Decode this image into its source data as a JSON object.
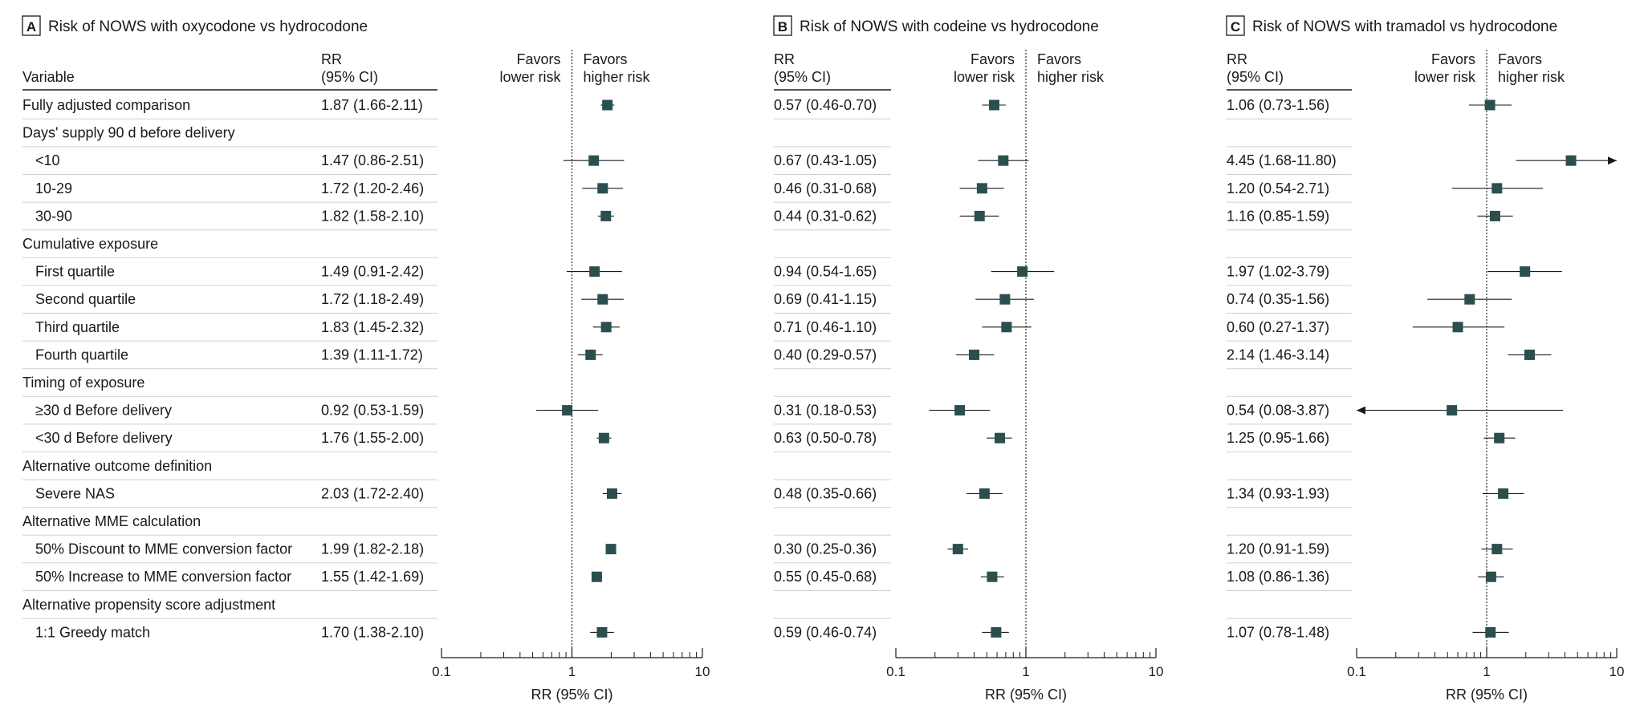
{
  "figure": {
    "variable_header": "Variable",
    "rr_header_line1": "RR",
    "rr_header_line2": "(95% CI)",
    "favors_left_line1": "Favors",
    "favors_left_line2": "lower risk",
    "favors_right_line1": "Favors",
    "favors_right_line2": "higher risk",
    "axis_label": "RR (95% CI)",
    "tick_labels": [
      "0.1",
      "1",
      "10"
    ],
    "colors": {
      "marker": "#2b4f4f",
      "text": "#1a1a1a",
      "rule": "#cfcfcf"
    }
  },
  "chart_data": {
    "type": "forest",
    "xscale": "log",
    "xlim": [
      0.1,
      10
    ],
    "reference_line": 1,
    "rows": [
      {
        "label": "Fully adjusted comparison",
        "kind": "item",
        "indent": false
      },
      {
        "label": "Days' supply 90 d before delivery",
        "kind": "heading"
      },
      {
        "label": "<10",
        "kind": "item",
        "indent": true
      },
      {
        "label": "10-29",
        "kind": "item",
        "indent": true
      },
      {
        "label": "30-90",
        "kind": "item",
        "indent": true
      },
      {
        "label": "Cumulative exposure",
        "kind": "heading"
      },
      {
        "label": "First quartile",
        "kind": "item",
        "indent": true
      },
      {
        "label": "Second quartile",
        "kind": "item",
        "indent": true
      },
      {
        "label": "Third quartile",
        "kind": "item",
        "indent": true
      },
      {
        "label": "Fourth quartile",
        "kind": "item",
        "indent": true
      },
      {
        "label": "Timing of exposure",
        "kind": "heading"
      },
      {
        "label": "≥30 d Before delivery",
        "kind": "item",
        "indent": true
      },
      {
        "label": "<30 d Before delivery",
        "kind": "item",
        "indent": true
      },
      {
        "label": "Alternative outcome definition",
        "kind": "heading"
      },
      {
        "label": "Severe NAS",
        "kind": "item",
        "indent": true
      },
      {
        "label": "Alternative MME calculation",
        "kind": "heading"
      },
      {
        "label": "50% Discount to MME conversion factor",
        "kind": "item",
        "indent": true
      },
      {
        "label": "50% Increase to MME conversion factor",
        "kind": "item",
        "indent": true
      },
      {
        "label": "Alternative propensity score adjustment",
        "kind": "heading"
      },
      {
        "label": "1:1 Greedy match",
        "kind": "item",
        "indent": true
      }
    ],
    "panels": [
      {
        "badge": "A",
        "title": "Risk of NOWS with oxycodone vs hydrocodone",
        "estimates": [
          {
            "row": 0,
            "text": "1.87 (1.66-2.11)",
            "rr": 1.87,
            "lo": 1.66,
            "hi": 2.11
          },
          {
            "row": 2,
            "text": "1.47 (0.86-2.51)",
            "rr": 1.47,
            "lo": 0.86,
            "hi": 2.51
          },
          {
            "row": 3,
            "text": "1.72 (1.20-2.46)",
            "rr": 1.72,
            "lo": 1.2,
            "hi": 2.46
          },
          {
            "row": 4,
            "text": "1.82 (1.58-2.10)",
            "rr": 1.82,
            "lo": 1.58,
            "hi": 2.1
          },
          {
            "row": 6,
            "text": "1.49 (0.91-2.42)",
            "rr": 1.49,
            "lo": 0.91,
            "hi": 2.42
          },
          {
            "row": 7,
            "text": "1.72 (1.18-2.49)",
            "rr": 1.72,
            "lo": 1.18,
            "hi": 2.49
          },
          {
            "row": 8,
            "text": "1.83 (1.45-2.32)",
            "rr": 1.83,
            "lo": 1.45,
            "hi": 2.32
          },
          {
            "row": 9,
            "text": "1.39 (1.11-1.72)",
            "rr": 1.39,
            "lo": 1.11,
            "hi": 1.72
          },
          {
            "row": 11,
            "text": "0.92 (0.53-1.59)",
            "rr": 0.92,
            "lo": 0.53,
            "hi": 1.59
          },
          {
            "row": 12,
            "text": "1.76 (1.55-2.00)",
            "rr": 1.76,
            "lo": 1.55,
            "hi": 2.0
          },
          {
            "row": 14,
            "text": "2.03 (1.72-2.40)",
            "rr": 2.03,
            "lo": 1.72,
            "hi": 2.4
          },
          {
            "row": 16,
            "text": "1.99 (1.82-2.18)",
            "rr": 1.99,
            "lo": 1.82,
            "hi": 2.18
          },
          {
            "row": 17,
            "text": "1.55 (1.42-1.69)",
            "rr": 1.55,
            "lo": 1.42,
            "hi": 1.69
          },
          {
            "row": 19,
            "text": "1.70 (1.38-2.10)",
            "rr": 1.7,
            "lo": 1.38,
            "hi": 2.1
          }
        ]
      },
      {
        "badge": "B",
        "title": "Risk of NOWS with codeine vs hydrocodone",
        "estimates": [
          {
            "row": 0,
            "text": "0.57 (0.46-0.70)",
            "rr": 0.57,
            "lo": 0.46,
            "hi": 0.7
          },
          {
            "row": 2,
            "text": "0.67 (0.43-1.05)",
            "rr": 0.67,
            "lo": 0.43,
            "hi": 1.05
          },
          {
            "row": 3,
            "text": "0.46 (0.31-0.68)",
            "rr": 0.46,
            "lo": 0.31,
            "hi": 0.68
          },
          {
            "row": 4,
            "text": "0.44 (0.31-0.62)",
            "rr": 0.44,
            "lo": 0.31,
            "hi": 0.62
          },
          {
            "row": 6,
            "text": "0.94 (0.54-1.65)",
            "rr": 0.94,
            "lo": 0.54,
            "hi": 1.65
          },
          {
            "row": 7,
            "text": "0.69 (0.41-1.15)",
            "rr": 0.69,
            "lo": 0.41,
            "hi": 1.15
          },
          {
            "row": 8,
            "text": "0.71 (0.46-1.10)",
            "rr": 0.71,
            "lo": 0.46,
            "hi": 1.1
          },
          {
            "row": 9,
            "text": "0.40 (0.29-0.57)",
            "rr": 0.4,
            "lo": 0.29,
            "hi": 0.57
          },
          {
            "row": 11,
            "text": "0.31 (0.18-0.53)",
            "rr": 0.31,
            "lo": 0.18,
            "hi": 0.53
          },
          {
            "row": 12,
            "text": "0.63 (0.50-0.78)",
            "rr": 0.63,
            "lo": 0.5,
            "hi": 0.78
          },
          {
            "row": 14,
            "text": "0.48 (0.35-0.66)",
            "rr": 0.48,
            "lo": 0.35,
            "hi": 0.66
          },
          {
            "row": 16,
            "text": "0.30 (0.25-0.36)",
            "rr": 0.3,
            "lo": 0.25,
            "hi": 0.36
          },
          {
            "row": 17,
            "text": "0.55 (0.45-0.68)",
            "rr": 0.55,
            "lo": 0.45,
            "hi": 0.68
          },
          {
            "row": 19,
            "text": "0.59 (0.46-0.74)",
            "rr": 0.59,
            "lo": 0.46,
            "hi": 0.74
          }
        ]
      },
      {
        "badge": "C",
        "title": "Risk of NOWS with tramadol vs hydrocodone",
        "estimates": [
          {
            "row": 0,
            "text": "1.06 (0.73-1.56)",
            "rr": 1.06,
            "lo": 0.73,
            "hi": 1.56
          },
          {
            "row": 2,
            "text": "4.45 (1.68-11.80)",
            "rr": 4.45,
            "lo": 1.68,
            "hi": 11.8
          },
          {
            "row": 3,
            "text": "1.20 (0.54-2.71)",
            "rr": 1.2,
            "lo": 0.54,
            "hi": 2.71
          },
          {
            "row": 4,
            "text": "1.16 (0.85-1.59)",
            "rr": 1.16,
            "lo": 0.85,
            "hi": 1.59
          },
          {
            "row": 6,
            "text": "1.97 (1.02-3.79)",
            "rr": 1.97,
            "lo": 1.02,
            "hi": 3.79
          },
          {
            "row": 7,
            "text": "0.74 (0.35-1.56)",
            "rr": 0.74,
            "lo": 0.35,
            "hi": 1.56
          },
          {
            "row": 8,
            "text": "0.60 (0.27-1.37)",
            "rr": 0.6,
            "lo": 0.27,
            "hi": 1.37
          },
          {
            "row": 9,
            "text": "2.14 (1.46-3.14)",
            "rr": 2.14,
            "lo": 1.46,
            "hi": 3.14
          },
          {
            "row": 11,
            "text": "0.54 (0.08-3.87)",
            "rr": 0.54,
            "lo": 0.08,
            "hi": 3.87
          },
          {
            "row": 12,
            "text": "1.25 (0.95-1.66)",
            "rr": 1.25,
            "lo": 0.95,
            "hi": 1.66
          },
          {
            "row": 14,
            "text": "1.34 (0.93-1.93)",
            "rr": 1.34,
            "lo": 0.93,
            "hi": 1.93
          },
          {
            "row": 16,
            "text": "1.20 (0.91-1.59)",
            "rr": 1.2,
            "lo": 0.91,
            "hi": 1.59
          },
          {
            "row": 17,
            "text": "1.08 (0.86-1.36)",
            "rr": 1.08,
            "lo": 0.86,
            "hi": 1.36
          },
          {
            "row": 19,
            "text": "1.07 (0.78-1.48)",
            "rr": 1.07,
            "lo": 0.78,
            "hi": 1.48
          }
        ]
      }
    ]
  }
}
